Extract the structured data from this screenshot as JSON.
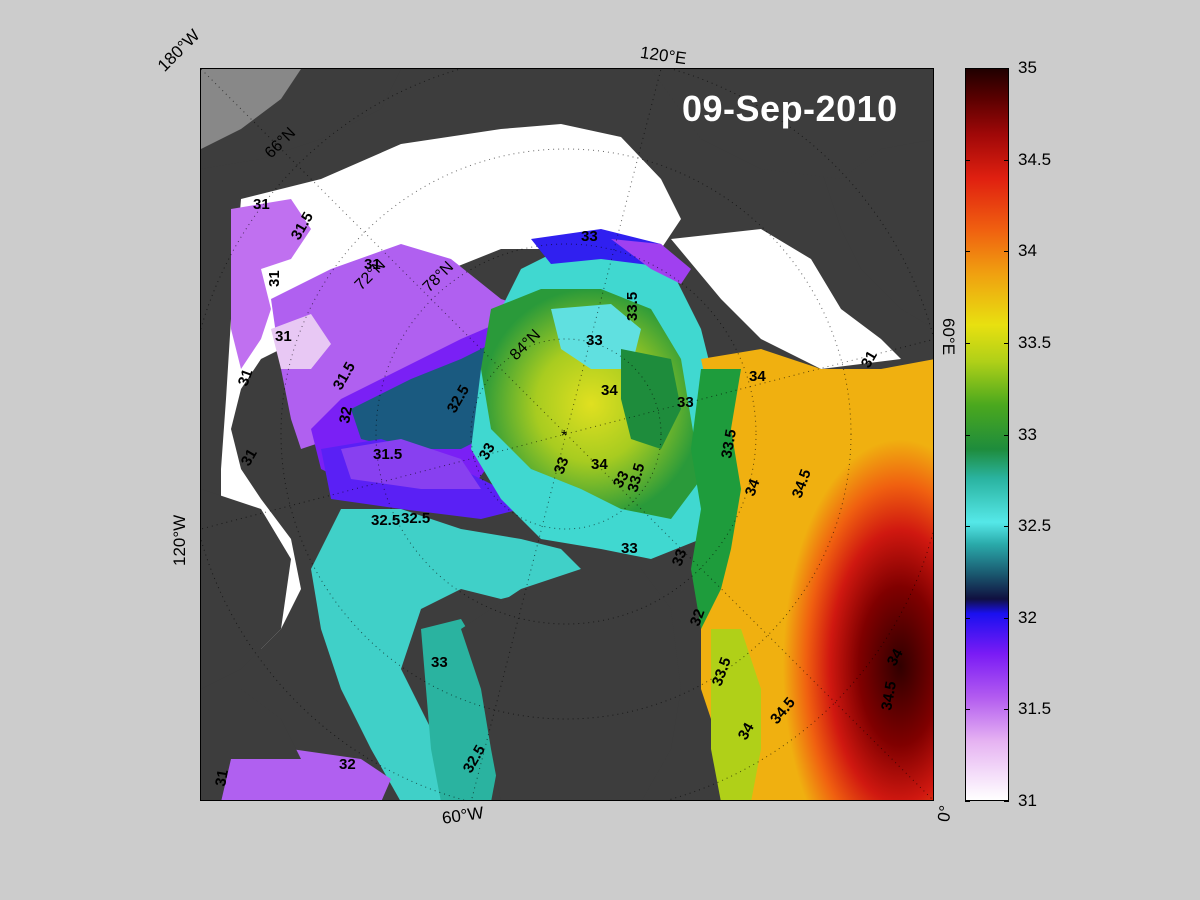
{
  "date_label": "09-Sep-2010",
  "longitude_labels": {
    "lon_180w": "180°W",
    "lon_120e": "120°E",
    "lon_60e": "60°E",
    "lon_120w": "120°W",
    "lon_60w": "60°W",
    "lon_0": "0°"
  },
  "latitude_labels": [
    "66°N",
    "72°N",
    "78°N",
    "84°N"
  ],
  "colorbar": {
    "min": 31,
    "max": 35,
    "ticks": [
      "35",
      "34.5",
      "34",
      "33.5",
      "33",
      "32.5",
      "32",
      "31.5",
      "31"
    ]
  },
  "contour_labels": [
    "31",
    "31.5",
    "31",
    "31",
    "31",
    "31.5",
    "32",
    "32.5",
    "33",
    "33",
    "33.5",
    "34",
    "33",
    "34",
    "33.5",
    "33",
    "34",
    "34.5",
    "33.5",
    "34",
    "33",
    "32.5",
    "33",
    "32.5",
    "33",
    "33.5",
    "34",
    "34.5",
    "34",
    "34.5",
    "31",
    "32",
    "32.5",
    "33",
    "31.5",
    "31",
    "31",
    "32",
    "33",
    "31"
  ],
  "colors": {
    "land": "#3d3d3d",
    "ice": "#ffffff",
    "background": "#cccccc"
  }
}
